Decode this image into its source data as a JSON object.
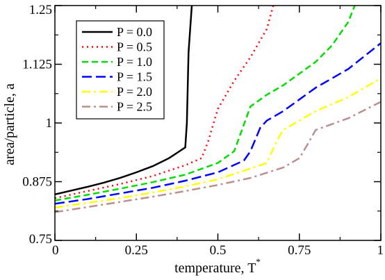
{
  "chart_data": {
    "type": "line",
    "title": "",
    "xlabel": "temperature, T",
    "xlabel_superscript": "*",
    "ylabel": "area/particle, a",
    "xlim": [
      0,
      1
    ],
    "ylim": [
      0.75,
      1.25
    ],
    "xticks": [
      0,
      0.25,
      0.5,
      0.75,
      1
    ],
    "xtick_labels": [
      "0",
      "0.25",
      "0.5",
      "0.75",
      "1"
    ],
    "yticks": [
      0.75,
      0.875,
      1,
      1.125,
      1.25
    ],
    "ytick_labels": [
      "0.75",
      "0.875",
      "1",
      "1.125",
      "1.25"
    ],
    "grid": false,
    "legend_position": "top-left",
    "series": [
      {
        "name": "P = 0.0",
        "color": "#000000",
        "dash": "solid",
        "x": [
          0,
          0.05,
          0.1,
          0.15,
          0.2,
          0.25,
          0.3,
          0.35,
          0.4,
          0.405,
          0.41,
          0.42
        ],
        "y": [
          0.848,
          0.856,
          0.864,
          0.873,
          0.883,
          0.895,
          0.908,
          0.925,
          0.948,
          1.0,
          1.15,
          1.25
        ]
      },
      {
        "name": "P = 0.5",
        "color": "#ff0000",
        "dash": "dotted",
        "x": [
          0,
          0.1,
          0.2,
          0.3,
          0.4,
          0.45,
          0.47,
          0.5,
          0.55,
          0.6,
          0.65,
          0.67
        ],
        "y": [
          0.84,
          0.855,
          0.87,
          0.887,
          0.91,
          0.925,
          0.96,
          1.03,
          1.09,
          1.14,
          1.2,
          1.25
        ]
      },
      {
        "name": "P = 1.0",
        "color": "#00dd00",
        "dash": "dashed",
        "x": [
          0,
          0.1,
          0.2,
          0.3,
          0.4,
          0.5,
          0.55,
          0.6,
          0.65,
          0.7,
          0.75,
          0.8,
          0.85,
          0.9,
          0.92
        ],
        "y": [
          0.835,
          0.847,
          0.86,
          0.874,
          0.89,
          0.915,
          0.94,
          1.035,
          1.06,
          1.08,
          1.105,
          1.13,
          1.165,
          1.215,
          1.25
        ]
      },
      {
        "name": "P = 1.5",
        "color": "#0000ff",
        "dash": "long-dash",
        "x": [
          0,
          0.1,
          0.2,
          0.3,
          0.4,
          0.5,
          0.58,
          0.6,
          0.63,
          0.65,
          0.7,
          0.75,
          0.8,
          0.9,
          1.0
        ],
        "y": [
          0.828,
          0.838,
          0.85,
          0.862,
          0.877,
          0.895,
          0.92,
          0.94,
          0.99,
          1.005,
          1.025,
          1.05,
          1.075,
          1.115,
          1.17
        ]
      },
      {
        "name": "P = 2.0",
        "color": "#ffff00",
        "dash": "dash-dot",
        "x": [
          0,
          0.1,
          0.2,
          0.3,
          0.4,
          0.5,
          0.6,
          0.65,
          0.68,
          0.7,
          0.75,
          0.8,
          0.9,
          1.0
        ],
        "y": [
          0.82,
          0.83,
          0.84,
          0.852,
          0.865,
          0.88,
          0.903,
          0.915,
          0.96,
          0.985,
          1.005,
          1.025,
          1.055,
          1.095
        ]
      },
      {
        "name": "P = 2.5",
        "color": "#bc8f8f",
        "dash": "dash-dot",
        "x": [
          0,
          0.1,
          0.2,
          0.3,
          0.4,
          0.5,
          0.6,
          0.7,
          0.75,
          0.78,
          0.8,
          0.9,
          1.0
        ],
        "y": [
          0.81,
          0.821,
          0.832,
          0.843,
          0.855,
          0.868,
          0.883,
          0.905,
          0.925,
          0.96,
          0.985,
          1.01,
          1.045
        ]
      }
    ]
  }
}
